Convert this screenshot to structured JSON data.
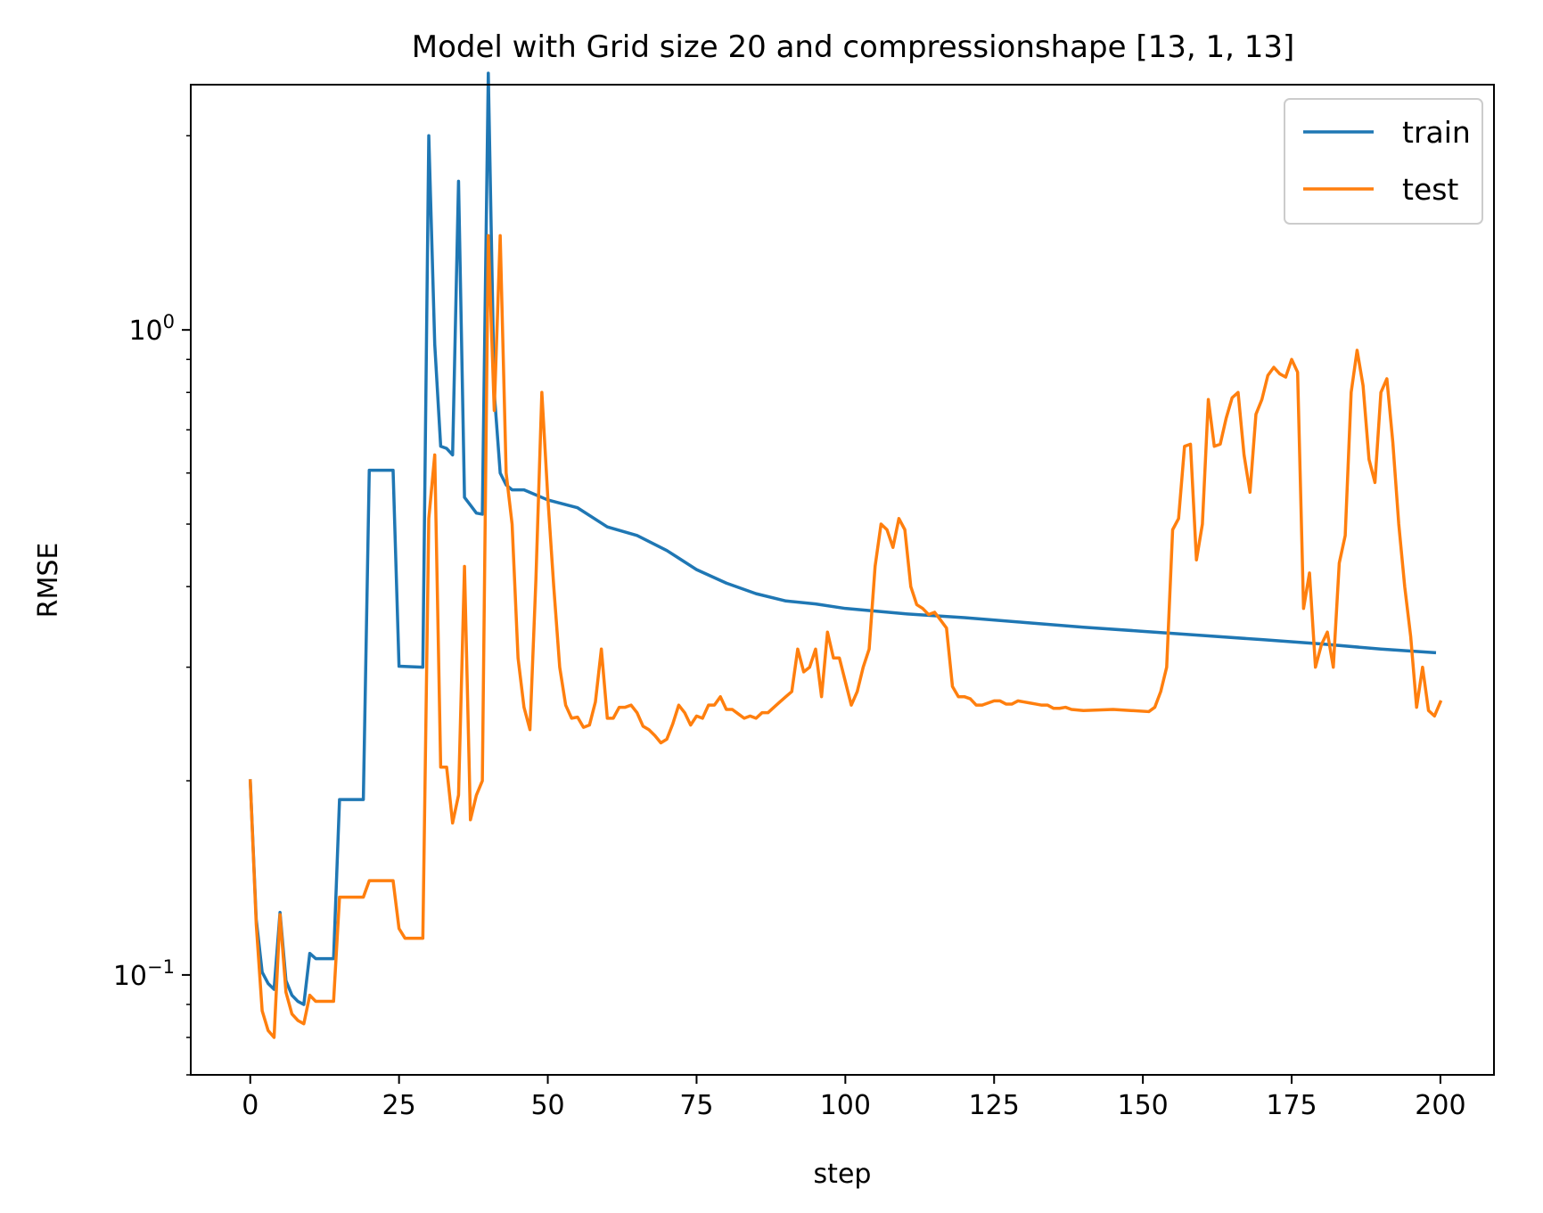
{
  "chart_data": {
    "type": "line",
    "title": "Model with Grid size 20 and compressionshape [13, 1, 13]",
    "xlabel": "step",
    "ylabel": "RMSE",
    "yscale": "log",
    "xlim": [
      -10,
      209
    ],
    "ylim": [
      0.07,
      2.4
    ],
    "grid": false,
    "legend_position": "upper right",
    "xticks": [
      {
        "value": 0,
        "label": "0"
      },
      {
        "value": 25,
        "label": "25"
      },
      {
        "value": 50,
        "label": "50"
      },
      {
        "value": 75,
        "label": "75"
      },
      {
        "value": 100,
        "label": "100"
      },
      {
        "value": 125,
        "label": "125"
      },
      {
        "value": 150,
        "label": "150"
      },
      {
        "value": 175,
        "label": "175"
      },
      {
        "value": 200,
        "label": "200"
      }
    ],
    "yticks": [
      {
        "value": 0.1,
        "base": "10",
        "exp": "−1"
      },
      {
        "value": 1,
        "base": "10",
        "exp": "0"
      }
    ],
    "series": [
      {
        "name": "train",
        "color": "#1f77b4",
        "points": [
          [
            0,
            0.2
          ],
          [
            1,
            0.122
          ],
          [
            2,
            0.101
          ],
          [
            3,
            0.097
          ],
          [
            4,
            0.095
          ],
          [
            5,
            0.125
          ],
          [
            6,
            0.098
          ],
          [
            7,
            0.093
          ],
          [
            8,
            0.091
          ],
          [
            9,
            0.09
          ],
          [
            10,
            0.108
          ],
          [
            11,
            0.106
          ],
          [
            14,
            0.106
          ],
          [
            15,
            0.187
          ],
          [
            19,
            0.187
          ],
          [
            20,
            0.606
          ],
          [
            24,
            0.606
          ],
          [
            25,
            0.301
          ],
          [
            29,
            0.3
          ],
          [
            30,
            2.0
          ],
          [
            31,
            0.95
          ],
          [
            32,
            0.66
          ],
          [
            33,
            0.655
          ],
          [
            34,
            0.64
          ],
          [
            35,
            1.7
          ],
          [
            36,
            0.55
          ],
          [
            37,
            0.535
          ],
          [
            38,
            0.52
          ],
          [
            39,
            0.518
          ],
          [
            40,
            2.5
          ],
          [
            41,
            0.8
          ],
          [
            42,
            0.6
          ],
          [
            43,
            0.575
          ],
          [
            44,
            0.565
          ],
          [
            46,
            0.565
          ],
          [
            50,
            0.545
          ],
          [
            55,
            0.53
          ],
          [
            60,
            0.495
          ],
          [
            65,
            0.48
          ],
          [
            70,
            0.455
          ],
          [
            75,
            0.425
          ],
          [
            80,
            0.405
          ],
          [
            85,
            0.39
          ],
          [
            90,
            0.38
          ],
          [
            95,
            0.376
          ],
          [
            100,
            0.37
          ],
          [
            110,
            0.363
          ],
          [
            120,
            0.358
          ],
          [
            130,
            0.352
          ],
          [
            140,
            0.346
          ],
          [
            150,
            0.341
          ],
          [
            160,
            0.336
          ],
          [
            170,
            0.331
          ],
          [
            180,
            0.326
          ],
          [
            190,
            0.32
          ],
          [
            199,
            0.316
          ]
        ]
      },
      {
        "name": "test",
        "color": "#ff7f0e",
        "points": [
          [
            0,
            0.2
          ],
          [
            1,
            0.12
          ],
          [
            2,
            0.088
          ],
          [
            3,
            0.082
          ],
          [
            4,
            0.08
          ],
          [
            5,
            0.124
          ],
          [
            6,
            0.094
          ],
          [
            7,
            0.087
          ],
          [
            8,
            0.085
          ],
          [
            9,
            0.084
          ],
          [
            10,
            0.093
          ],
          [
            11,
            0.091
          ],
          [
            14,
            0.091
          ],
          [
            15,
            0.132
          ],
          [
            19,
            0.132
          ],
          [
            20,
            0.14
          ],
          [
            24,
            0.14
          ],
          [
            25,
            0.118
          ],
          [
            26,
            0.114
          ],
          [
            29,
            0.114
          ],
          [
            30,
            0.51
          ],
          [
            31,
            0.64
          ],
          [
            32,
            0.21
          ],
          [
            33,
            0.21
          ],
          [
            34,
            0.172
          ],
          [
            35,
            0.19
          ],
          [
            36,
            0.43
          ],
          [
            37,
            0.174
          ],
          [
            38,
            0.19
          ],
          [
            39,
            0.2
          ],
          [
            40,
            1.4
          ],
          [
            41,
            0.75
          ],
          [
            42,
            1.4
          ],
          [
            43,
            0.6
          ],
          [
            44,
            0.5
          ],
          [
            45,
            0.31
          ],
          [
            46,
            0.26
          ],
          [
            47,
            0.24
          ],
          [
            48,
            0.41
          ],
          [
            49,
            0.8
          ],
          [
            50,
            0.55
          ],
          [
            51,
            0.4
          ],
          [
            52,
            0.3
          ],
          [
            53,
            0.262
          ],
          [
            54,
            0.25
          ],
          [
            55,
            0.251
          ],
          [
            56,
            0.242
          ],
          [
            57,
            0.244
          ],
          [
            58,
            0.265
          ],
          [
            59,
            0.32
          ],
          [
            60,
            0.25
          ],
          [
            61,
            0.25
          ],
          [
            62,
            0.26
          ],
          [
            63,
            0.26
          ],
          [
            64,
            0.262
          ],
          [
            65,
            0.255
          ],
          [
            66,
            0.243
          ],
          [
            67,
            0.24
          ],
          [
            68,
            0.235
          ],
          [
            69,
            0.229
          ],
          [
            70,
            0.232
          ],
          [
            71,
            0.245
          ],
          [
            72,
            0.262
          ],
          [
            73,
            0.255
          ],
          [
            74,
            0.244
          ],
          [
            75,
            0.252
          ],
          [
            76,
            0.25
          ],
          [
            77,
            0.262
          ],
          [
            78,
            0.262
          ],
          [
            79,
            0.27
          ],
          [
            80,
            0.258
          ],
          [
            81,
            0.258
          ],
          [
            82,
            0.254
          ],
          [
            83,
            0.25
          ],
          [
            84,
            0.252
          ],
          [
            85,
            0.25
          ],
          [
            86,
            0.255
          ],
          [
            87,
            0.255
          ],
          [
            88,
            0.26
          ],
          [
            89,
            0.265
          ],
          [
            90,
            0.27
          ],
          [
            91,
            0.275
          ],
          [
            92,
            0.32
          ],
          [
            93,
            0.295
          ],
          [
            94,
            0.3
          ],
          [
            95,
            0.32
          ],
          [
            96,
            0.27
          ],
          [
            97,
            0.34
          ],
          [
            98,
            0.31
          ],
          [
            99,
            0.31
          ],
          [
            100,
            0.285
          ],
          [
            101,
            0.262
          ],
          [
            102,
            0.275
          ],
          [
            103,
            0.3
          ],
          [
            104,
            0.32
          ],
          [
            105,
            0.43
          ],
          [
            106,
            0.5
          ],
          [
            107,
            0.49
          ],
          [
            108,
            0.46
          ],
          [
            109,
            0.51
          ],
          [
            110,
            0.49
          ],
          [
            111,
            0.4
          ],
          [
            112,
            0.375
          ],
          [
            113,
            0.37
          ],
          [
            114,
            0.362
          ],
          [
            115,
            0.365
          ],
          [
            116,
            0.355
          ],
          [
            117,
            0.345
          ],
          [
            118,
            0.28
          ],
          [
            119,
            0.27
          ],
          [
            120,
            0.27
          ],
          [
            121,
            0.268
          ],
          [
            122,
            0.262
          ],
          [
            123,
            0.262
          ],
          [
            124,
            0.264
          ],
          [
            125,
            0.266
          ],
          [
            126,
            0.266
          ],
          [
            127,
            0.263
          ],
          [
            128,
            0.263
          ],
          [
            129,
            0.266
          ],
          [
            130,
            0.265
          ],
          [
            131,
            0.264
          ],
          [
            132,
            0.263
          ],
          [
            133,
            0.262
          ],
          [
            134,
            0.262
          ],
          [
            135,
            0.259
          ],
          [
            136,
            0.259
          ],
          [
            137,
            0.26
          ],
          [
            138,
            0.258
          ],
          [
            140,
            0.257
          ],
          [
            145,
            0.258
          ],
          [
            148,
            0.257
          ],
          [
            151,
            0.256
          ],
          [
            152,
            0.26
          ],
          [
            153,
            0.275
          ],
          [
            154,
            0.3
          ],
          [
            155,
            0.49
          ],
          [
            156,
            0.51
          ],
          [
            157,
            0.66
          ],
          [
            158,
            0.665
          ],
          [
            159,
            0.44
          ],
          [
            160,
            0.5
          ],
          [
            161,
            0.78
          ],
          [
            162,
            0.66
          ],
          [
            163,
            0.665
          ],
          [
            164,
            0.73
          ],
          [
            165,
            0.785
          ],
          [
            166,
            0.8
          ],
          [
            167,
            0.64
          ],
          [
            168,
            0.56
          ],
          [
            169,
            0.74
          ],
          [
            170,
            0.78
          ],
          [
            171,
            0.85
          ],
          [
            172,
            0.875
          ],
          [
            173,
            0.855
          ],
          [
            174,
            0.845
          ],
          [
            175,
            0.9
          ],
          [
            176,
            0.86
          ],
          [
            177,
            0.37
          ],
          [
            178,
            0.42
          ],
          [
            179,
            0.3
          ],
          [
            180,
            0.325
          ],
          [
            181,
            0.34
          ],
          [
            182,
            0.3
          ],
          [
            183,
            0.435
          ],
          [
            184,
            0.48
          ],
          [
            185,
            0.8
          ],
          [
            186,
            0.93
          ],
          [
            187,
            0.82
          ],
          [
            188,
            0.63
          ],
          [
            189,
            0.58
          ],
          [
            190,
            0.8
          ],
          [
            191,
            0.84
          ],
          [
            192,
            0.67
          ],
          [
            193,
            0.5
          ],
          [
            194,
            0.4
          ],
          [
            195,
            0.335
          ],
          [
            196,
            0.26
          ],
          [
            197,
            0.3
          ],
          [
            198,
            0.257
          ],
          [
            199,
            0.252
          ],
          [
            200,
            0.265
          ]
        ]
      }
    ]
  }
}
